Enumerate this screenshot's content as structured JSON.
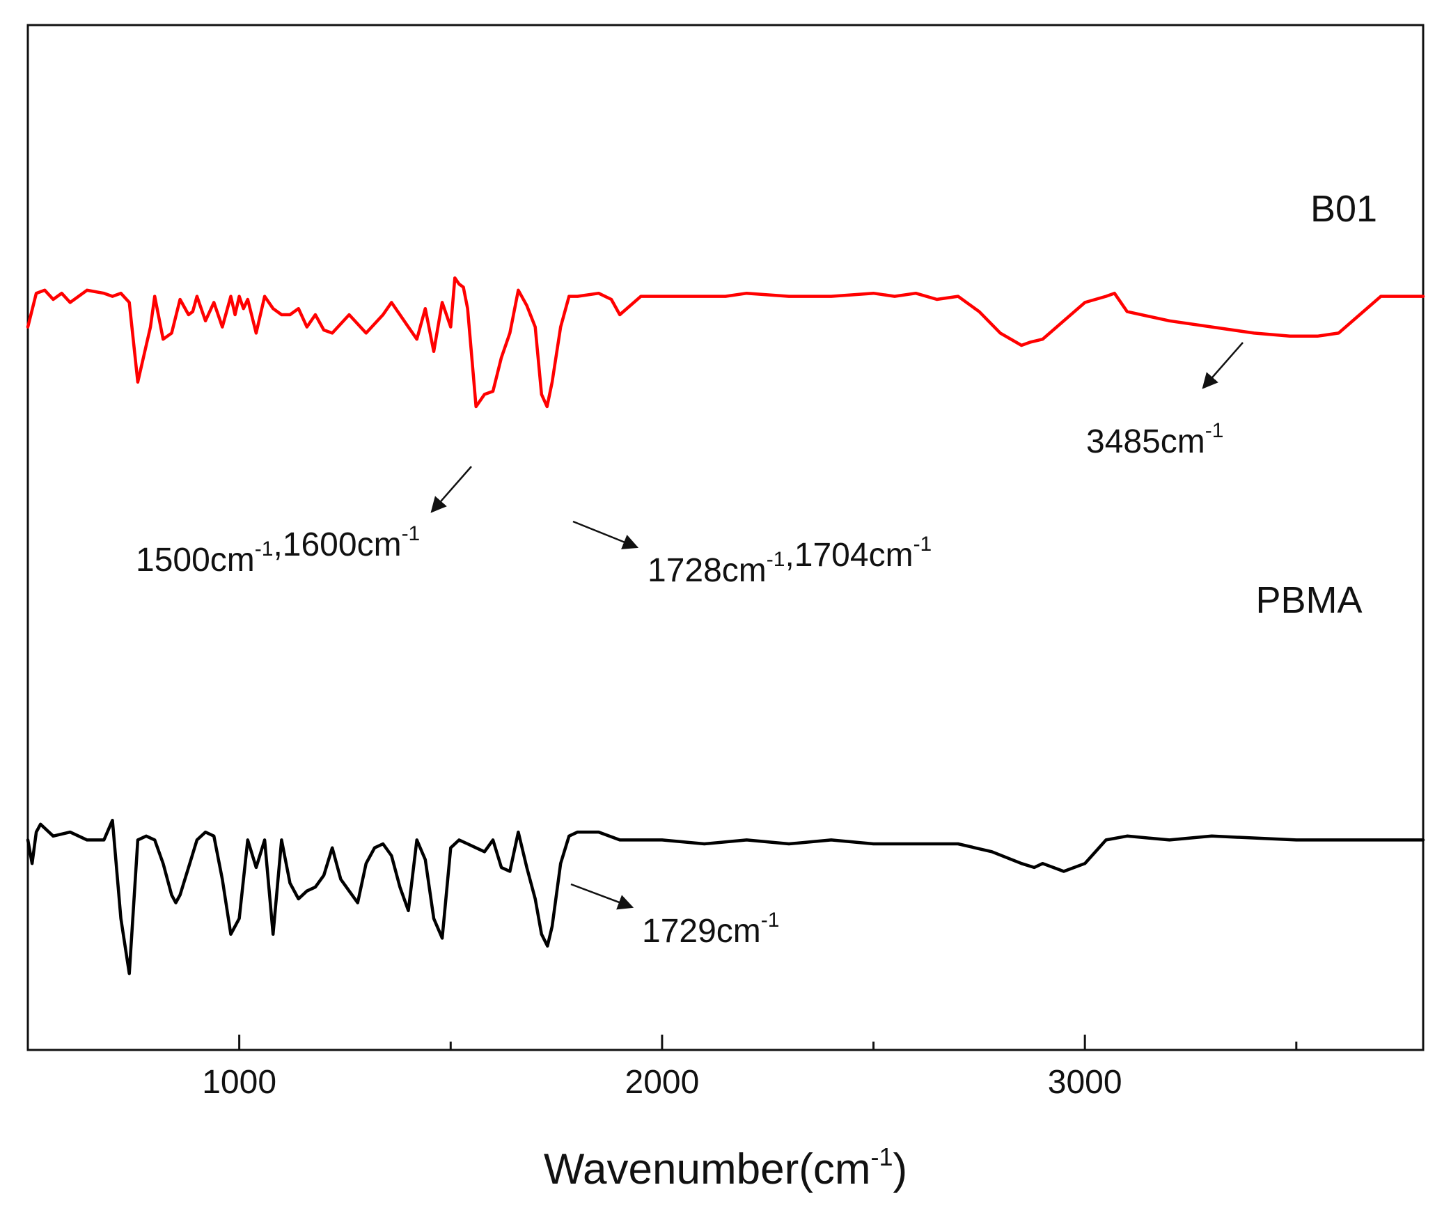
{
  "chart_data": {
    "type": "line",
    "title": "",
    "xlabel": "Wavenumber(cm",
    "xlabel_sup": "-1",
    "xlabel_close": ")",
    "ylabel": "",
    "xlim": [
      500,
      3800
    ],
    "ylim": [
      0,
      100
    ],
    "x_ticks": [
      {
        "value": 1000,
        "label": "1000"
      },
      {
        "value": 2000,
        "label": "2000"
      },
      {
        "value": 3000,
        "label": "3000"
      }
    ],
    "minor_ticks": [
      500,
      1500,
      2500,
      3500
    ],
    "series": [
      {
        "name": "B01",
        "color": "#ff0000",
        "x": [
          500,
          520,
          540,
          560,
          580,
          600,
          640,
          680,
          700,
          720,
          740,
          760,
          780,
          790,
          800,
          820,
          840,
          860,
          880,
          890,
          900,
          920,
          940,
          960,
          980,
          990,
          1000,
          1010,
          1020,
          1040,
          1060,
          1080,
          1100,
          1120,
          1140,
          1160,
          1180,
          1200,
          1220,
          1260,
          1300,
          1340,
          1360,
          1380,
          1400,
          1420,
          1440,
          1460,
          1480,
          1500,
          1510,
          1520,
          1530,
          1540,
          1560,
          1580,
          1600,
          1620,
          1640,
          1660,
          1680,
          1700,
          1715,
          1728,
          1740,
          1760,
          1780,
          1800,
          1850,
          1880,
          1900,
          1950,
          2000,
          2050,
          2100,
          2150,
          2200,
          2300,
          2400,
          2500,
          2550,
          2600,
          2650,
          2700,
          2750,
          2800,
          2850,
          2870,
          2900,
          2950,
          3000,
          3050,
          3070,
          3100,
          3200,
          3300,
          3400,
          3485,
          3550,
          3600,
          3650,
          3700,
          3800
        ],
        "y": [
          66,
          77,
          78,
          75,
          77,
          74,
          78,
          77,
          76,
          77,
          74,
          48,
          60,
          66,
          76,
          62,
          64,
          75,
          70,
          71,
          76,
          68,
          74,
          66,
          76,
          70,
          76,
          72,
          75,
          64,
          76,
          72,
          70,
          70,
          72,
          66,
          70,
          65,
          64,
          70,
          64,
          70,
          74,
          70,
          66,
          62,
          72,
          58,
          74,
          66,
          82,
          80,
          79,
          72,
          40,
          44,
          45,
          56,
          64,
          78,
          73,
          66,
          44,
          40,
          48,
          66,
          76,
          76,
          77,
          75,
          70,
          76,
          76,
          76,
          76,
          76,
          77,
          76,
          76,
          77,
          76,
          77,
          75,
          76,
          71,
          64,
          60,
          61,
          62,
          68,
          74,
          76,
          77,
          71,
          68,
          66,
          64,
          63,
          63,
          64,
          70,
          76,
          76
        ],
        "label": "B01"
      },
      {
        "name": "PBMA",
        "color": "#000000",
        "x": [
          500,
          510,
          520,
          530,
          540,
          560,
          600,
          640,
          680,
          700,
          720,
          740,
          760,
          780,
          800,
          820,
          840,
          850,
          860,
          880,
          900,
          920,
          940,
          960,
          980,
          1000,
          1020,
          1040,
          1060,
          1080,
          1100,
          1120,
          1140,
          1160,
          1180,
          1200,
          1220,
          1240,
          1260,
          1280,
          1300,
          1320,
          1340,
          1360,
          1380,
          1400,
          1420,
          1440,
          1460,
          1480,
          1500,
          1520,
          1540,
          1560,
          1580,
          1600,
          1620,
          1640,
          1660,
          1680,
          1700,
          1715,
          1729,
          1740,
          1760,
          1780,
          1800,
          1850,
          1900,
          2000,
          2100,
          2200,
          2300,
          2400,
          2500,
          2600,
          2700,
          2780,
          2850,
          2880,
          2900,
          2950,
          3000,
          3050,
          3100,
          3200,
          3300,
          3500,
          3700,
          3800
        ],
        "y": [
          40,
          34,
          42,
          44,
          43,
          41,
          42,
          40,
          40,
          45,
          20,
          6,
          40,
          41,
          40,
          34,
          26,
          24,
          26,
          33,
          40,
          42,
          41,
          30,
          16,
          20,
          40,
          33,
          40,
          16,
          40,
          29,
          25,
          27,
          28,
          31,
          38,
          30,
          27,
          24,
          34,
          38,
          39,
          36,
          28,
          22,
          40,
          35,
          20,
          15,
          38,
          40,
          39,
          38,
          37,
          40,
          33,
          32,
          42,
          33,
          25,
          16,
          13,
          18,
          34,
          41,
          42,
          42,
          40,
          40,
          39,
          40,
          39,
          40,
          39,
          39,
          39,
          37,
          34,
          33,
          34,
          32,
          34,
          40,
          41,
          40,
          41,
          40,
          40,
          40
        ],
        "label": "PBMA"
      }
    ],
    "annotations": [
      {
        "id": "ann-3485",
        "parts": [
          [
            "3485cm",
            "-1"
          ]
        ],
        "target_x": 3485,
        "series": "B01"
      },
      {
        "id": "ann-1500-1600",
        "parts": [
          [
            "1500cm",
            "-1"
          ],
          [
            ",1600cm",
            "-1"
          ]
        ],
        "target_x": 1550,
        "series": "B01"
      },
      {
        "id": "ann-1728-1704",
        "parts": [
          [
            "1728cm",
            "-1"
          ],
          [
            ",1704cm",
            "-1"
          ]
        ],
        "target_x": 1728,
        "series": "B01"
      },
      {
        "id": "ann-1729",
        "parts": [
          [
            "1729cm",
            "-1"
          ]
        ],
        "target_x": 1729,
        "series": "PBMA"
      }
    ]
  }
}
